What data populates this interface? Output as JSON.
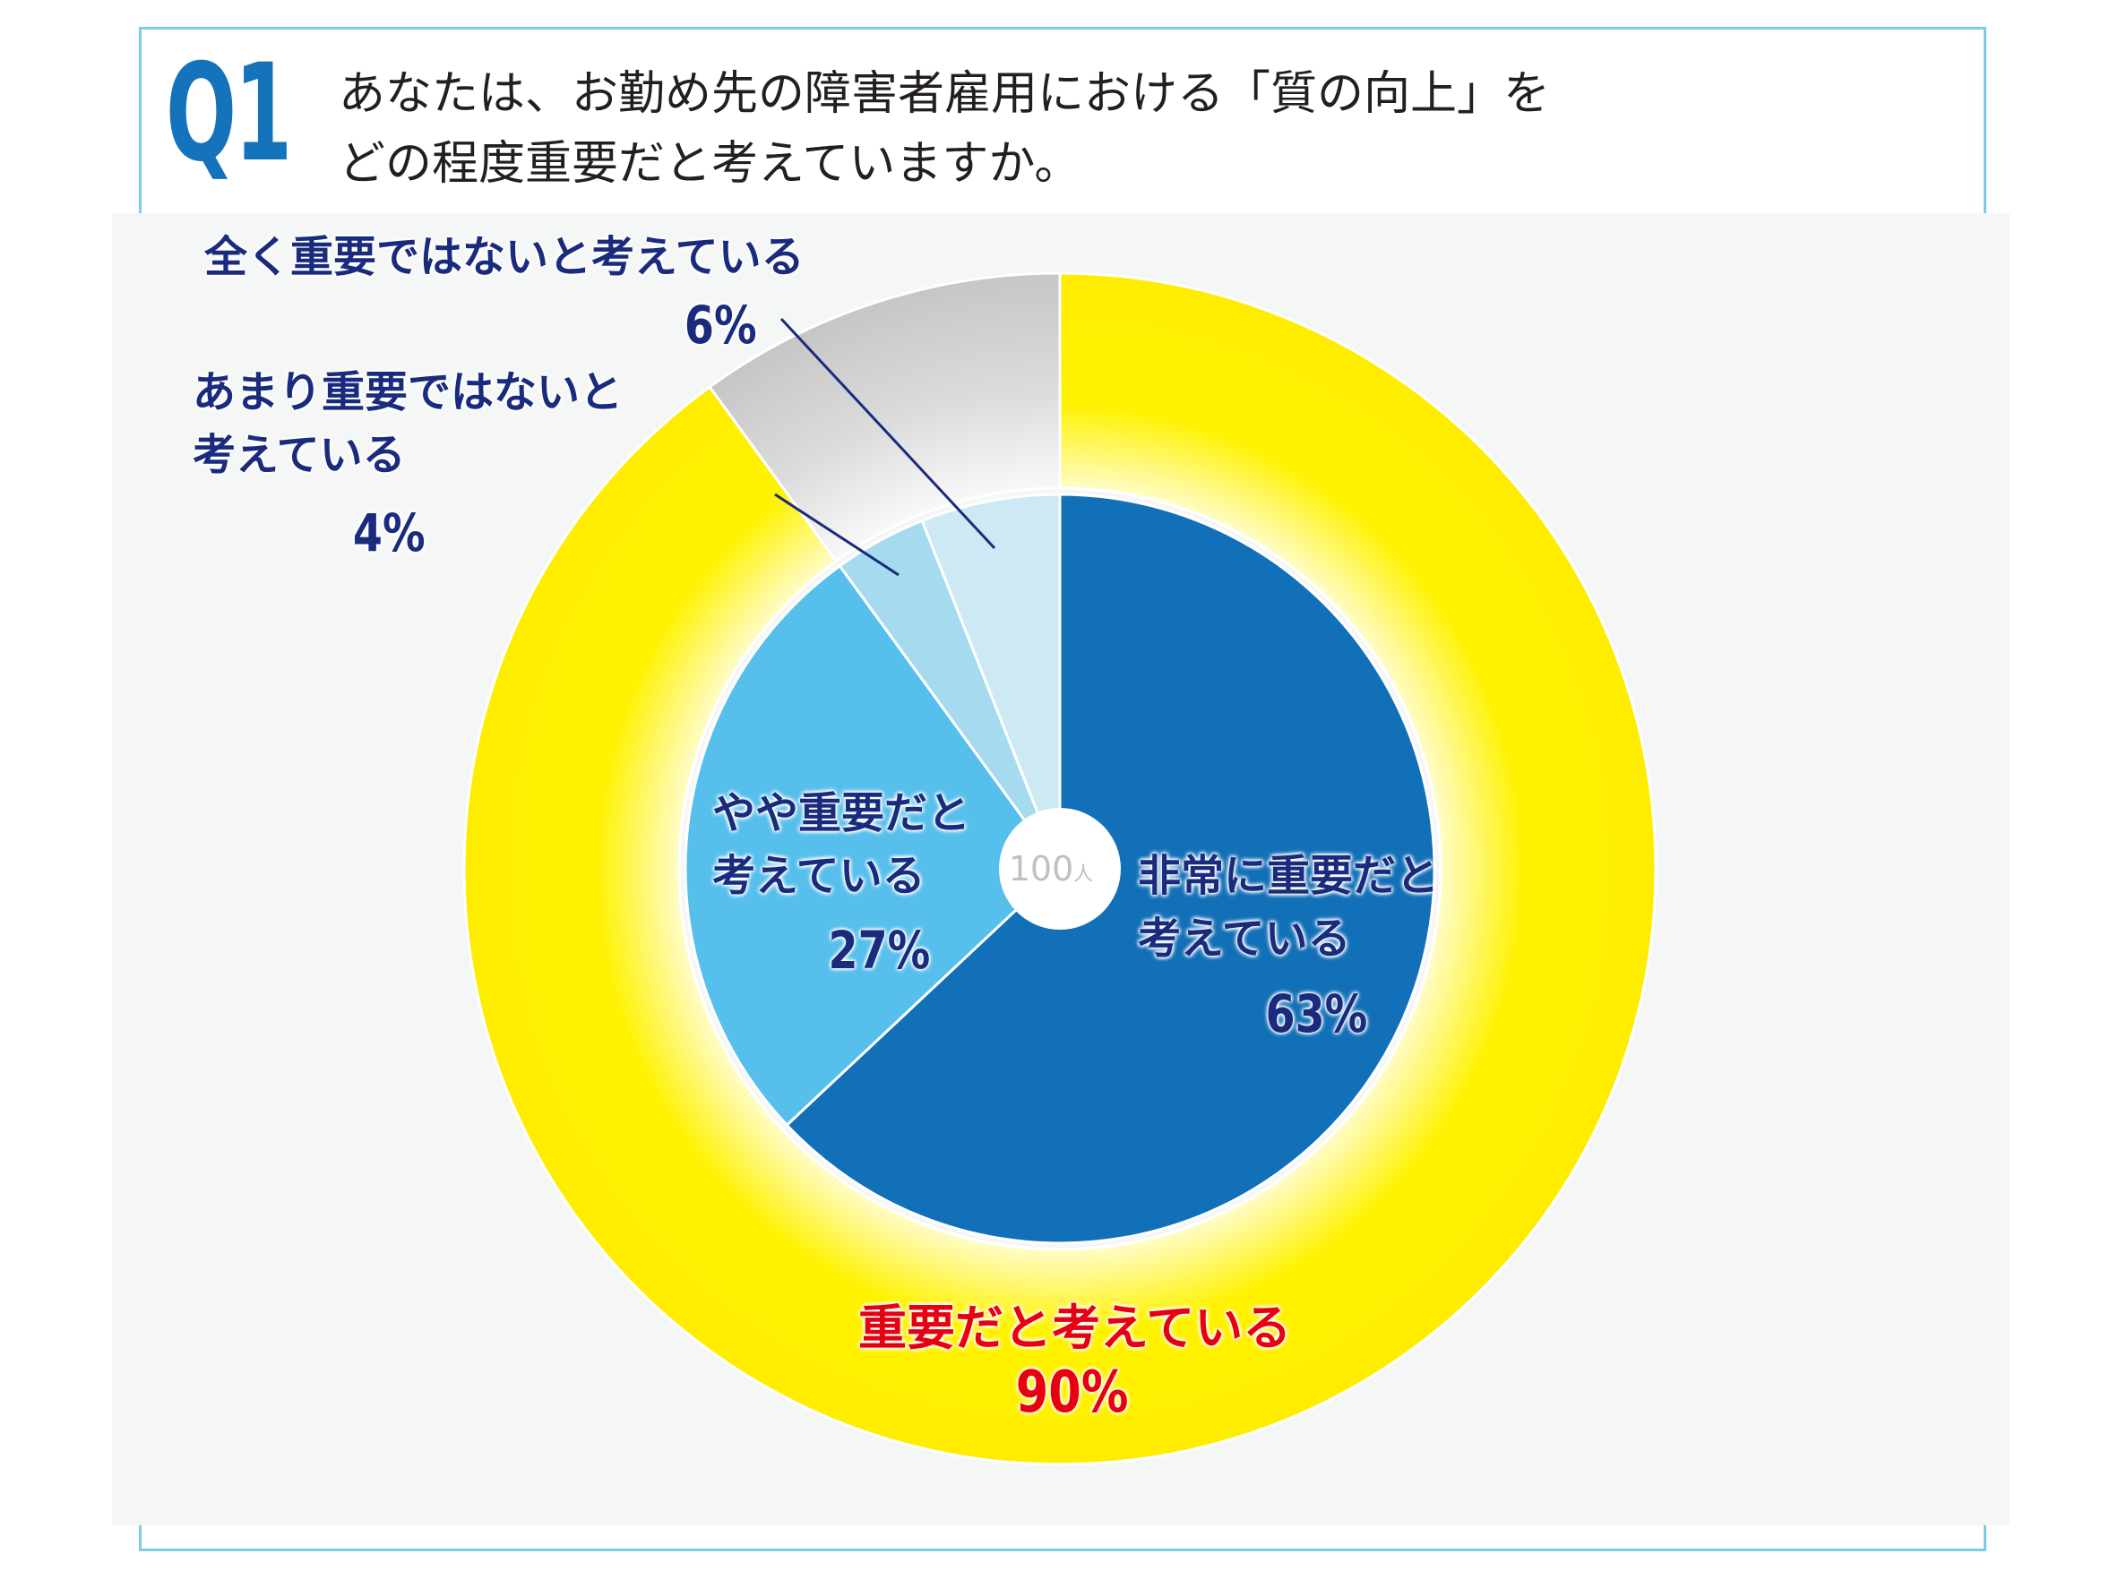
{
  "header": {
    "question_number": "Q1",
    "question_text": "あなたは、お勤め先の障害者雇用における「質の向上」を\nどの程度重要だと考えていますか。"
  },
  "chart_data": {
    "type": "pie",
    "subtype": "nested-donut",
    "total": {
      "value": "100",
      "unit": "人"
    },
    "inner": [
      {
        "label": "非常に重要だと\n考えている",
        "value": 63,
        "value_label": "63%",
        "color": "#1270b8"
      },
      {
        "label": "やや重要だと\n考えている",
        "value": 27,
        "value_label": "27%",
        "color": "#56bfec"
      },
      {
        "label": "あまり重要ではないと\n考えている",
        "value": 4,
        "value_label": "4%",
        "color": "#a6dbef"
      },
      {
        "label": "全く重要ではないと考えている",
        "value": 6,
        "value_label": "6%",
        "color": "#cce9f4"
      }
    ],
    "outer": [
      {
        "label": "重要だと考えている",
        "value": 90,
        "value_label": "90%",
        "color": "#fff000"
      },
      {
        "label": "",
        "value": 10,
        "value_label": "",
        "color": "#c9c9c9"
      }
    ]
  }
}
